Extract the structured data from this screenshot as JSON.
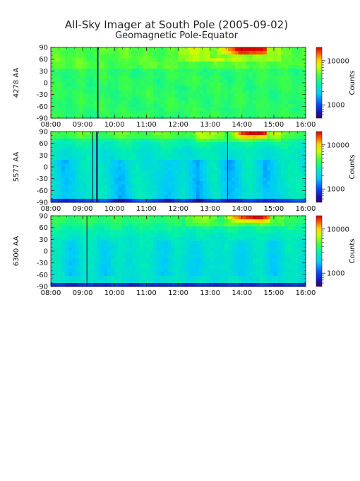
{
  "title": "All-Sky Imager at South Pole (2005-09-02)",
  "subtitle": "Geomagnetic Pole-Equator",
  "chart_data": [
    {
      "type": "heatmap",
      "ylabel": "4278 AA",
      "x_ticks": [
        "08:00",
        "09:00",
        "10:00",
        "11:00",
        "12:00",
        "13:00",
        "14:00",
        "15:00",
        "16:00"
      ],
      "y_ticks": [
        90,
        60,
        30,
        0,
        -30,
        -60,
        -90
      ],
      "xlim": [
        "08:00",
        "16:00"
      ],
      "ylim": [
        -90,
        90
      ],
      "colorbar": {
        "label": "Counts",
        "scale": "log",
        "ticks": [
          10000,
          1000
        ]
      },
      "vertical_dark_lines": [
        "09:28",
        "09:29"
      ],
      "bright_region": {
        "time": [
          "13:00",
          "14:45"
        ],
        "lat": [
          65,
          90
        ]
      }
    },
    {
      "type": "heatmap",
      "ylabel": "5577 AA",
      "x_ticks": [
        "08:00",
        "09:00",
        "10:00",
        "11:00",
        "12:00",
        "13:00",
        "14:00",
        "15:00",
        "16:00"
      ],
      "y_ticks": [
        90,
        60,
        30,
        0,
        -30,
        -60,
        -90
      ],
      "xlim": [
        "08:00",
        "16:00"
      ],
      "ylim": [
        -90,
        90
      ],
      "colorbar": {
        "label": "Counts",
        "scale": "log",
        "ticks": [
          10000,
          1000
        ]
      },
      "vertical_dark_lines": [
        "09:19",
        "09:26",
        "09:28",
        "13:33"
      ],
      "bright_region": {
        "time": [
          "13:30",
          "14:45"
        ],
        "lat": [
          70,
          90
        ]
      }
    },
    {
      "type": "heatmap",
      "ylabel": "6300 AA",
      "x_ticks": [
        "08:00",
        "09:00",
        "10:00",
        "11:00",
        "12:00",
        "13:00",
        "14:00",
        "15:00",
        "16:00"
      ],
      "y_ticks": [
        90,
        60,
        30,
        0,
        -30,
        -60,
        -90
      ],
      "xlim": [
        "08:00",
        "16:00"
      ],
      "ylim": [
        -90,
        90
      ],
      "colorbar": {
        "label": "Counts",
        "scale": "log",
        "ticks": [
          10000,
          1000
        ]
      },
      "vertical_dark_lines": [
        "09:08"
      ],
      "bright_region": {
        "time": [
          "13:15",
          "14:50"
        ],
        "lat": [
          70,
          90
        ]
      }
    }
  ]
}
